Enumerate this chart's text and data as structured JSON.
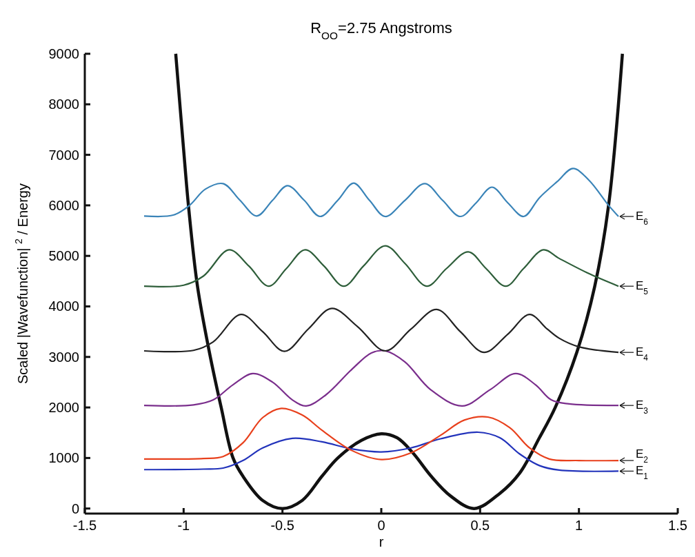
{
  "chart_data": {
    "type": "line",
    "title": "R$_{OO}$=2.75 Angstroms",
    "xlabel": "r",
    "ylabel": "Scaled |Wavefunction| $^{2}$ / Energy",
    "xlim": [
      -1.5,
      1.5
    ],
    "xticks": [
      -1.5,
      -1,
      -0.5,
      0,
      0.5,
      1,
      1.5
    ],
    "ylim": [
      -100,
      9000
    ],
    "yticks": [
      0,
      1000,
      2000,
      3000,
      4000,
      5000,
      6000,
      7000,
      8000,
      9000
    ],
    "grid": false,
    "marker": "none",
    "line_style": "solid",
    "series": [
      {
        "color": "#111111",
        "x": [
          -1.04,
          -1.0,
          -0.975,
          -0.93,
          -0.87,
          -0.81,
          -0.75,
          -0.7,
          -0.6,
          -0.5,
          -0.4,
          -0.3,
          -0.22,
          -0.1,
          0,
          0.08,
          0.16,
          0.25,
          0.35,
          0.47,
          0.6,
          0.7,
          0.8,
          0.88,
          0.99,
          1.08,
          1.15,
          1.22
        ],
        "values": [
          9000,
          7100,
          5970,
          4400,
          3100,
          2000,
          1000,
          640,
          160,
          0,
          160,
          640,
          1000,
          1350,
          1480,
          1400,
          1100,
          650,
          250,
          0,
          300,
          700,
          1400,
          2000,
          3100,
          4400,
          6000,
          9000
        ]
      },
      {
        "name": "E$_{1}$",
        "color": "#2233bb",
        "x": [
          -1.2,
          -0.9,
          -0.8,
          -0.7,
          -0.6,
          -0.45,
          -0.3,
          -0.15,
          0,
          0.15,
          0.3,
          0.49,
          0.6,
          0.7,
          0.8,
          0.9,
          1.2
        ],
        "values": [
          770,
          780,
          800,
          950,
          1200,
          1390,
          1320,
          1180,
          1120,
          1200,
          1380,
          1510,
          1400,
          1080,
          850,
          760,
          740
        ]
      },
      {
        "name": "E$_{2}$",
        "color": "#e8401c",
        "x": [
          -1.2,
          -0.9,
          -0.8,
          -0.7,
          -0.6,
          -0.51,
          -0.4,
          -0.3,
          -0.15,
          0,
          0.15,
          0.3,
          0.42,
          0.54,
          0.65,
          0.75,
          0.85,
          1.0,
          1.2
        ],
        "values": [
          980,
          990,
          1030,
          1300,
          1800,
          1980,
          1850,
          1550,
          1150,
          970,
          1100,
          1450,
          1750,
          1810,
          1600,
          1200,
          980,
          950,
          950
        ]
      },
      {
        "name": "E$_{3}$",
        "color": "#7a2e8c",
        "x": [
          -1.2,
          -0.95,
          -0.85,
          -0.75,
          -0.65,
          -0.55,
          -0.45,
          -0.38,
          -0.28,
          -0.15,
          -0.05,
          0.02,
          0.12,
          0.25,
          0.41,
          0.55,
          0.68,
          0.78,
          0.86,
          0.95,
          1.2
        ],
        "values": [
          2040,
          2050,
          2150,
          2450,
          2670,
          2500,
          2150,
          2030,
          2250,
          2750,
          3080,
          3120,
          2900,
          2350,
          2030,
          2350,
          2670,
          2450,
          2150,
          2070,
          2040
        ]
      },
      {
        "name": "E$_{4}$",
        "color": "#222222",
        "x": [
          -1.2,
          -0.95,
          -0.85,
          -0.71,
          -0.6,
          -0.49,
          -0.37,
          -0.25,
          -0.12,
          0.02,
          0.15,
          0.28,
          0.4,
          0.52,
          0.64,
          0.75,
          0.84,
          0.9,
          1.0,
          1.2
        ],
        "values": [
          3120,
          3130,
          3300,
          3840,
          3500,
          3110,
          3550,
          3960,
          3600,
          3120,
          3550,
          3940,
          3500,
          3090,
          3450,
          3840,
          3550,
          3370,
          3200,
          3090
        ]
      },
      {
        "name": "E$_{5}$",
        "color": "#2e5e3a",
        "x": [
          -1.2,
          -1.0,
          -0.9,
          -0.77,
          -0.67,
          -0.57,
          -0.48,
          -0.385,
          -0.29,
          -0.19,
          -0.09,
          0.02,
          0.12,
          0.23,
          0.33,
          0.44,
          0.53,
          0.63,
          0.72,
          0.82,
          0.9,
          1.05,
          1.2
        ],
        "values": [
          4400,
          4420,
          4600,
          5120,
          4800,
          4400,
          4750,
          5120,
          4800,
          4400,
          4800,
          5200,
          4850,
          4400,
          4750,
          5080,
          4750,
          4400,
          4750,
          5120,
          4950,
          4650,
          4400
        ]
      },
      {
        "name": "E$_{6}$",
        "color": "#3a84b8",
        "x": [
          -1.2,
          -1.05,
          -0.97,
          -0.89,
          -0.8,
          -0.715,
          -0.63,
          -0.55,
          -0.475,
          -0.39,
          -0.31,
          -0.22,
          -0.14,
          -0.06,
          0.02,
          0.12,
          0.22,
          0.31,
          0.4,
          0.48,
          0.56,
          0.64,
          0.72,
          0.8,
          0.89,
          0.97,
          1.05,
          1.15,
          1.2
        ],
        "values": [
          5790,
          5810,
          6000,
          6320,
          6430,
          6100,
          5790,
          6100,
          6390,
          6100,
          5780,
          6100,
          6440,
          6100,
          5780,
          6100,
          6430,
          6100,
          5780,
          6050,
          6360,
          6050,
          5780,
          6150,
          6470,
          6730,
          6500,
          6000,
          5780
        ]
      }
    ]
  }
}
